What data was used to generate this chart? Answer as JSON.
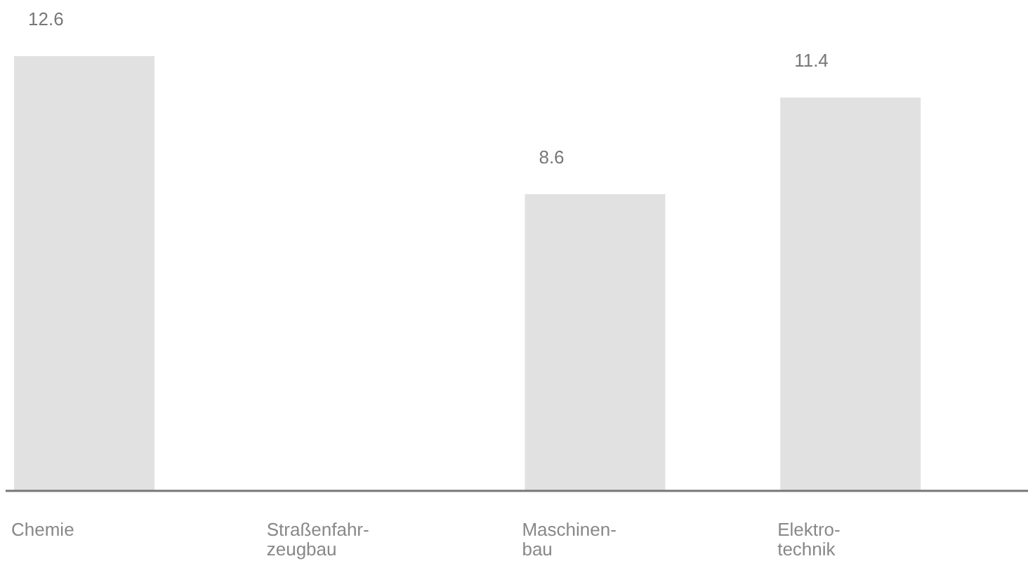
{
  "chart_data": {
    "type": "bar",
    "categories": [
      "Chemie",
      "Straßenfahr-\nzeugbau",
      "Maschinen-\nbau",
      "Elektro-\ntechnik"
    ],
    "values": [
      12.6,
      null,
      8.6,
      11.4
    ],
    "color": "#c8c8c8",
    "data_labels": true
  }
}
